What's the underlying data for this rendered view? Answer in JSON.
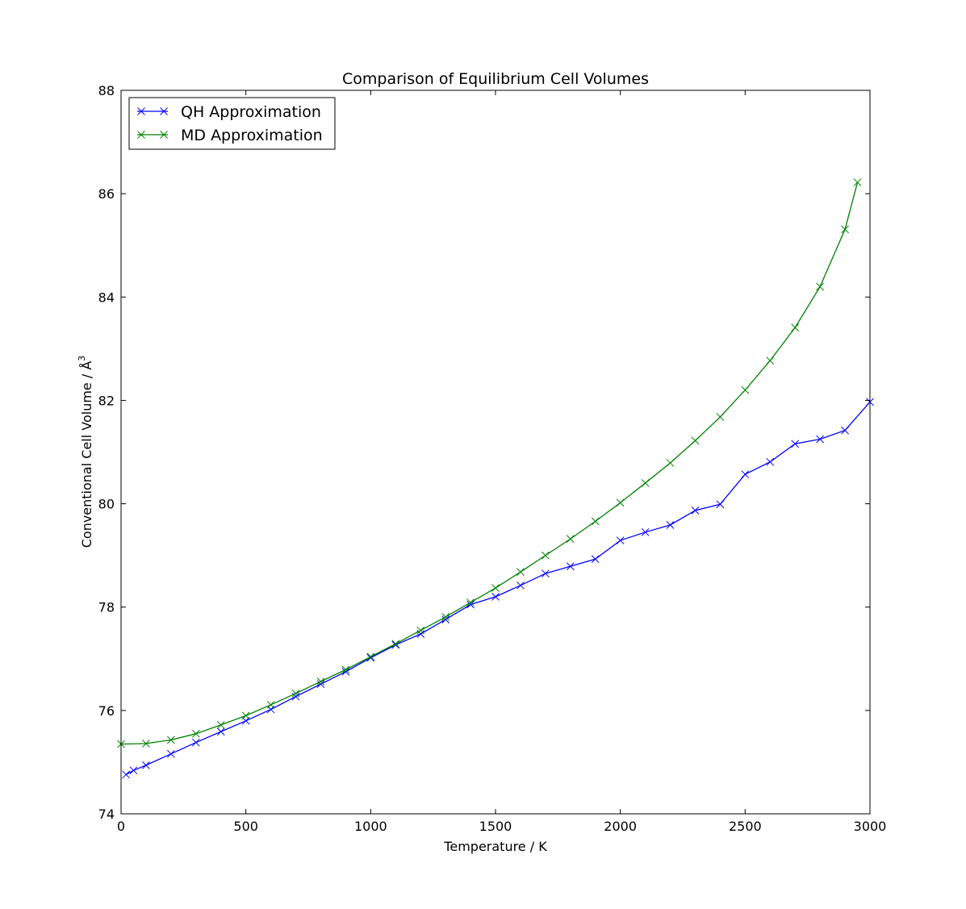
{
  "chart_data": {
    "type": "line",
    "title": "Comparison of Equilibrium Cell Volumes",
    "xlabel": "Temperature / K",
    "ylabel": "Conventional Cell Volume / Å",
    "ylabel_superscript": "3",
    "xlim": [
      0,
      3000
    ],
    "ylim": [
      74,
      88
    ],
    "xticks": [
      0,
      500,
      1000,
      1500,
      2000,
      2500,
      3000
    ],
    "yticks": [
      74,
      76,
      78,
      80,
      82,
      84,
      86,
      88
    ],
    "grid": false,
    "legend_position": "top-left",
    "marker": "x",
    "series": [
      {
        "name": "QH Approximation",
        "color": "#0000ff",
        "x": [
          20,
          50,
          100,
          200,
          300,
          400,
          500,
          600,
          700,
          800,
          900,
          1000,
          1100,
          1200,
          1300,
          1400,
          1500,
          1600,
          1700,
          1800,
          1900,
          2000,
          2100,
          2200,
          2300,
          2400,
          2500,
          2600,
          2700,
          2800,
          2900,
          3000
        ],
        "y": [
          74.76,
          74.84,
          74.94,
          75.16,
          75.38,
          75.59,
          75.8,
          76.02,
          76.27,
          76.51,
          76.75,
          77.02,
          77.27,
          77.48,
          77.76,
          78.05,
          78.2,
          78.42,
          78.65,
          78.79,
          78.93,
          79.29,
          79.45,
          79.59,
          79.87,
          79.99,
          80.57,
          80.81,
          81.16,
          81.25,
          81.42,
          81.97
        ]
      },
      {
        "name": "MD Approximation",
        "color": "#008000",
        "x": [
          0,
          100,
          200,
          300,
          400,
          500,
          600,
          700,
          800,
          900,
          1000,
          1100,
          1200,
          1300,
          1400,
          1500,
          1600,
          1700,
          1800,
          1900,
          2000,
          2100,
          2200,
          2300,
          2400,
          2500,
          2600,
          2700,
          2800,
          2900,
          2950
        ],
        "y": [
          75.35,
          75.36,
          75.43,
          75.55,
          75.72,
          75.9,
          76.11,
          76.33,
          76.56,
          76.79,
          77.04,
          77.29,
          77.55,
          77.81,
          78.09,
          78.37,
          78.68,
          79.0,
          79.32,
          79.66,
          80.02,
          80.4,
          80.79,
          81.22,
          81.68,
          82.2,
          82.77,
          83.41,
          84.2,
          85.31,
          86.22
        ]
      }
    ]
  }
}
